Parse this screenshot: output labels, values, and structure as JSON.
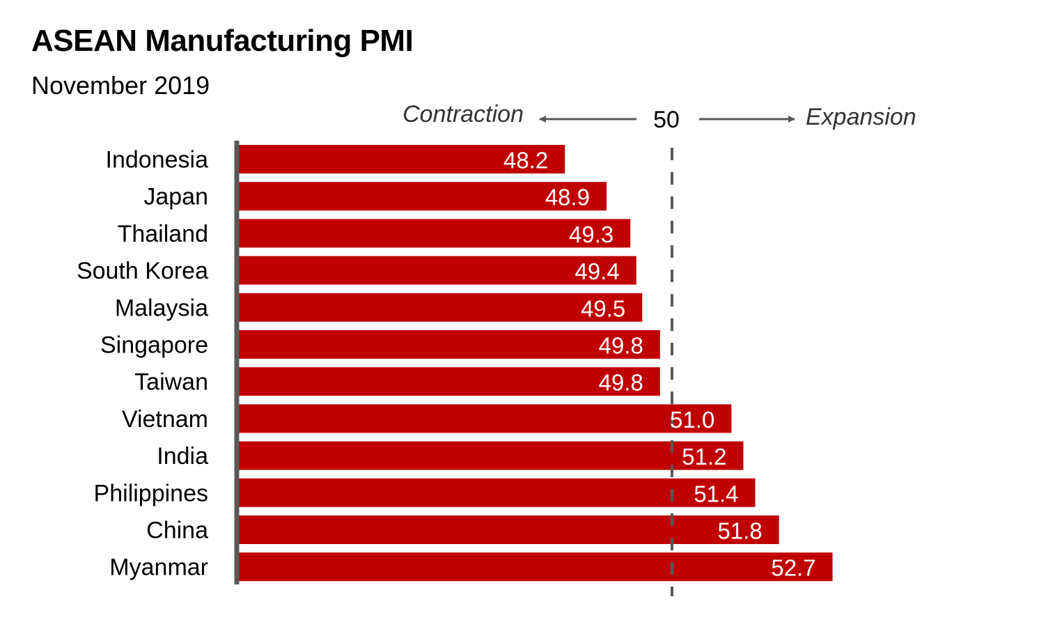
{
  "title": "ASEAN Manufacturing PMI",
  "subtitle": "November 2019",
  "chart_data": {
    "type": "bar",
    "orientation": "horizontal",
    "categories": [
      "Indonesia",
      "Japan",
      "Thailand",
      "South Korea",
      "Malaysia",
      "Singapore",
      "Taiwan",
      "Vietnam",
      "India",
      "Philippines",
      "China",
      "Myanmar"
    ],
    "values": [
      48.2,
      48.9,
      49.3,
      49.4,
      49.5,
      49.8,
      49.8,
      51.0,
      51.2,
      51.4,
      51.8,
      52.7
    ],
    "value_labels": [
      "48.2",
      "48.9",
      "49.3",
      "49.4",
      "49.5",
      "49.8",
      "49.8",
      "51.0",
      "51.2",
      "51.4",
      "51.8",
      "52.7"
    ],
    "reference_line": {
      "value": 50,
      "label": "50",
      "style": "dashed"
    },
    "annotations": {
      "left": "Contraction",
      "right": "Expansion"
    },
    "bar_color": "#c00000",
    "axis_color": "#595959",
    "grid": false
  }
}
